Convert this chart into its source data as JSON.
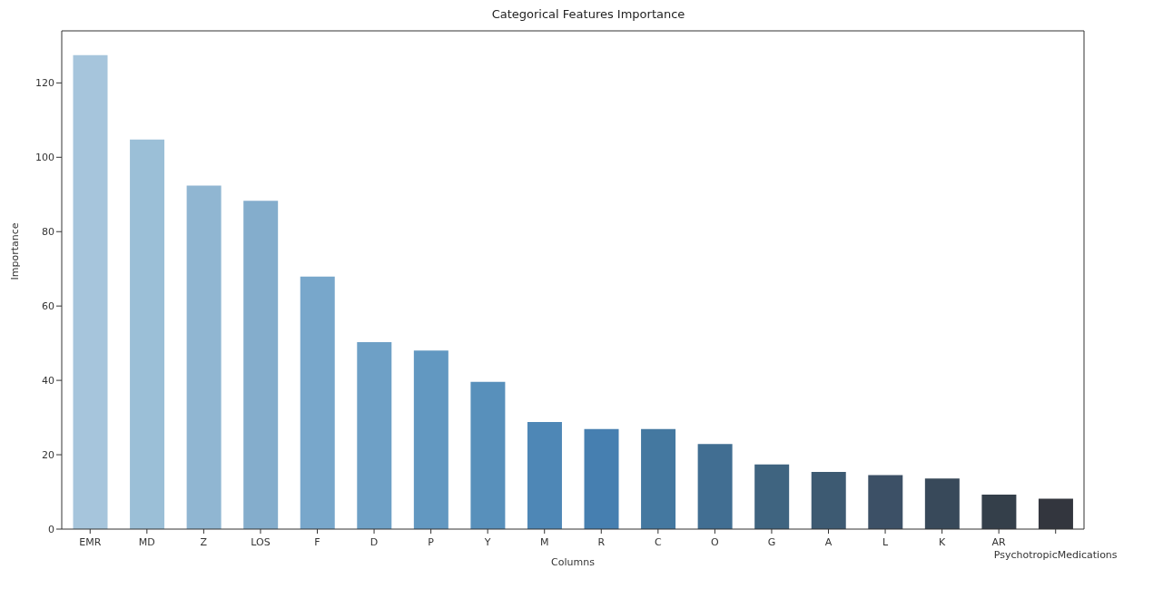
{
  "chart_data": {
    "type": "bar",
    "title": "Categorical Features Importance",
    "xlabel": "Columns",
    "ylabel": "Importance",
    "categories": [
      "EMR",
      "MD",
      "Z",
      "LOS",
      "F",
      "D",
      "P",
      "Y",
      "M",
      "R",
      "C",
      "O",
      "G",
      "A",
      "L",
      "K",
      "AR",
      "PsychotropicMedications"
    ],
    "values": [
      127.5,
      104.8,
      92.4,
      88.3,
      67.9,
      50.3,
      48,
      39.6,
      28.8,
      26.9,
      26.9,
      22.9,
      17.4,
      15.4,
      14.5,
      13.6,
      9.3,
      8.2
    ],
    "colors": [
      "#a6c5dc",
      "#9bbfd7",
      "#90b6d2",
      "#84adcc",
      "#78a7cb",
      "#6ea0c6",
      "#6298c1",
      "#5890bb",
      "#4e87b6",
      "#467fb0",
      "#4478a0",
      "#416e92",
      "#3f6480",
      "#3d5a72",
      "#3c5066",
      "#38495a",
      "#343f4a",
      "#33363e"
    ],
    "ylim": [
      0,
      134
    ],
    "yticks": [
      0,
      20,
      40,
      60,
      80,
      100,
      120
    ],
    "grid": false,
    "legend": false
  }
}
